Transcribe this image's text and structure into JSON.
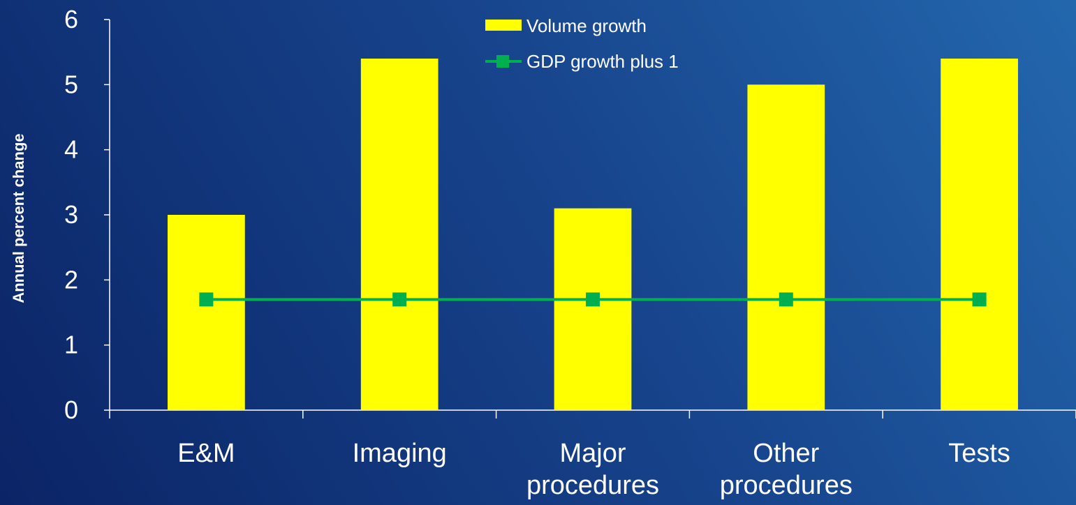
{
  "chart_data": {
    "type": "bar",
    "categories": [
      [
        "E&M"
      ],
      [
        "Imaging"
      ],
      [
        "Major",
        "procedures"
      ],
      [
        "Other",
        "procedures"
      ],
      [
        "Tests"
      ]
    ],
    "series": [
      {
        "name": "Volume growth",
        "kind": "bar",
        "color": "#ffff00",
        "values": [
          3.0,
          5.4,
          3.1,
          5.0,
          5.4
        ]
      },
      {
        "name": "GDP growth plus 1",
        "kind": "line",
        "marker": "square",
        "color": "#00b050",
        "values": [
          1.7,
          1.7,
          1.7,
          1.7,
          1.7
        ]
      }
    ],
    "title": "",
    "xlabel": "",
    "ylabel": "Annual percent change",
    "ylim": [
      0,
      6
    ],
    "yticks": [
      0,
      1,
      2,
      3,
      4,
      5,
      6
    ],
    "grid": false,
    "legend_position": "top-center"
  }
}
